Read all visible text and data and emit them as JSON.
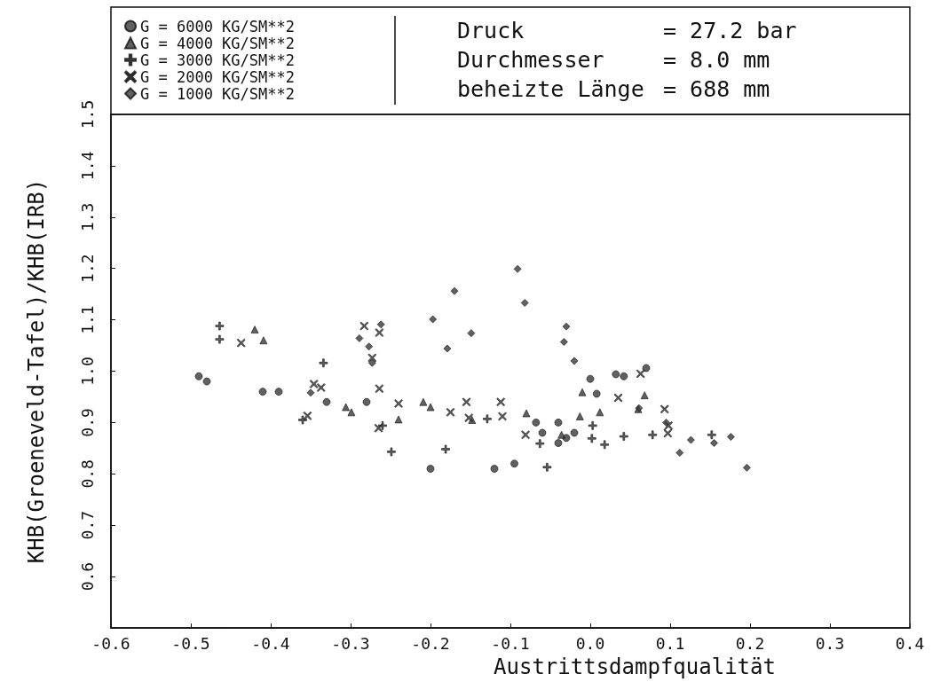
{
  "chart_data": {
    "type": "scatter",
    "xlabel": "Austrittsdampfqualität",
    "ylabel": "KHB(Groeneveld-Tafel)/KHB(IRB)",
    "annotations": [
      "Druck = 27.2 bar",
      "Durchmesser = 8.0 mm",
      "beheizte Länge = 688 mm"
    ],
    "xlim": [
      -0.6,
      0.4
    ],
    "xticks": [
      -0.6,
      -0.5,
      -0.4,
      -0.3,
      -0.2,
      -0.1,
      {
        "value": 0,
        "label": "0.0"
      },
      0.1,
      0.2,
      0.3,
      0.4
    ],
    "ylim": [
      0.5,
      1.5
    ],
    "yticks": [
      {
        "value": 0.5,
        "label": null
      },
      0.6,
      0.7,
      0.8,
      0.9,
      {
        "value": 1,
        "label": "1.0"
      },
      1.1,
      1.2,
      1.3,
      1.4,
      1.5
    ],
    "grid": false,
    "legend": "top left",
    "series": [
      {
        "name": "G = 6000 KG/SM**2",
        "color": "#3a3a3a",
        "marker": "circle",
        "x": [
          -0.49,
          -0.48,
          -0.41,
          -0.39,
          -0.33,
          -0.28,
          -0.2,
          -0.12,
          -0.095,
          -0.068,
          -0.06,
          -0.04,
          -0.04,
          -0.03,
          -0.02,
          0.0,
          0.008,
          0.032,
          0.042,
          0.07
        ],
        "values": [
          0.99,
          0.98,
          0.96,
          0.96,
          0.94,
          0.94,
          0.81,
          0.81,
          0.82,
          0.9,
          0.88,
          0.9,
          0.86,
          0.87,
          0.88,
          0.985,
          0.956,
          0.994,
          0.99,
          1.006
        ]
      },
      {
        "name": "G = 4000 KG/SM**2",
        "color": "#3a3a3a",
        "marker": "triangle",
        "x": [
          -0.42,
          -0.409,
          -0.306,
          -0.299,
          -0.24,
          -0.209,
          -0.2,
          -0.148,
          -0.08,
          -0.036,
          -0.013,
          -0.01,
          0.012,
          0.06,
          0.068
        ],
        "values": [
          1.081,
          1.06,
          0.93,
          0.92,
          0.906,
          0.94,
          0.93,
          0.905,
          0.918,
          0.876,
          0.912,
          0.959,
          0.92,
          0.926,
          0.953
        ]
      },
      {
        "name": "G = 3000 KG/SM**2",
        "color": "#3a3a3a",
        "marker": "plus",
        "x": [
          -0.464,
          -0.464,
          -0.36,
          -0.334,
          -0.26,
          -0.249,
          -0.181,
          -0.129,
          -0.063,
          -0.054,
          0.002,
          0.003,
          0.018,
          0.042,
          0.078,
          0.152
        ],
        "values": [
          1.088,
          1.062,
          0.905,
          1.016,
          0.894,
          0.843,
          0.848,
          0.907,
          0.859,
          0.813,
          0.869,
          0.894,
          0.857,
          0.873,
          0.876,
          0.876
        ]
      },
      {
        "name": "G = 2000 KG/SM**2",
        "color": "#3a3a3a",
        "marker": "cross",
        "x": [
          -0.437,
          -0.354,
          -0.346,
          -0.337,
          -0.283,
          -0.273,
          -0.265,
          -0.264,
          -0.264,
          -0.24,
          -0.175,
          -0.155,
          -0.152,
          -0.112,
          -0.11,
          -0.081,
          0.035,
          0.063,
          0.093,
          0.097,
          0.098
        ],
        "values": [
          1.055,
          0.913,
          0.975,
          0.968,
          1.088,
          1.026,
          0.889,
          1.075,
          0.966,
          0.937,
          0.92,
          0.94,
          0.909,
          0.94,
          0.912,
          0.876,
          0.948,
          0.995,
          0.926,
          0.879,
          0.894
        ]
      },
      {
        "name": "G = 1000 KG/SM**2",
        "color": "#3a3a3a",
        "marker": "diamond",
        "x": [
          -0.35,
          -0.289,
          -0.277,
          -0.273,
          -0.262,
          -0.197,
          -0.179,
          -0.17,
          -0.149,
          -0.091,
          -0.082,
          -0.033,
          -0.03,
          -0.02,
          0.061,
          0.095,
          0.112,
          0.126,
          0.155,
          0.176,
          0.196
        ],
        "values": [
          0.958,
          1.064,
          1.048,
          1.016,
          1.091,
          1.101,
          1.044,
          1.156,
          1.074,
          1.199,
          1.133,
          1.057,
          1.087,
          1.02,
          0.928,
          0.9,
          0.841,
          0.866,
          0.86,
          0.872,
          0.812
        ]
      }
    ]
  }
}
